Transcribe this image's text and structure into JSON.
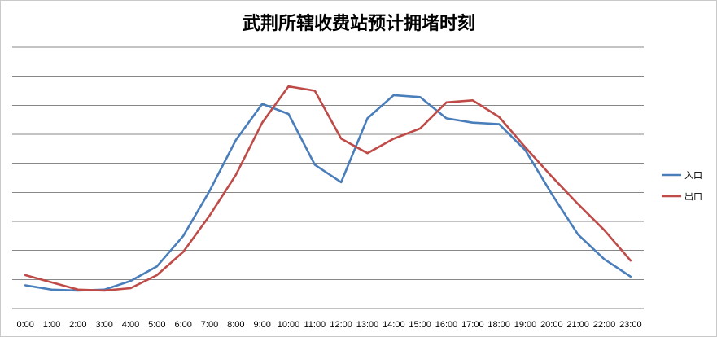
{
  "chart_data": {
    "type": "line",
    "title": "武荆所辖收费站预计拥堵时刻",
    "xlabel": "",
    "ylabel": "",
    "categories": [
      "0:00",
      "1:00",
      "2:00",
      "3:00",
      "4:00",
      "5:00",
      "6:00",
      "7:00",
      "8:00",
      "9:00",
      "10:00",
      "11:00",
      "12:00",
      "13:00",
      "14:00",
      "15:00",
      "16:00",
      "17:00",
      "18:00",
      "19:00",
      "20:00",
      "21:00",
      "22:00",
      "23:00"
    ],
    "ylim": [
      0,
      9
    ],
    "grid": true,
    "y_tick_labels_visible": false,
    "legend_position": "right",
    "series": [
      {
        "name": "入口",
        "color": "#4a7ebb",
        "values": [
          0.8,
          0.65,
          0.62,
          0.65,
          0.95,
          1.45,
          2.5,
          4.05,
          5.8,
          7.05,
          6.7,
          4.95,
          4.35,
          6.55,
          7.35,
          7.28,
          6.55,
          6.4,
          6.35,
          5.45,
          3.95,
          2.55,
          1.7,
          1.1
        ]
      },
      {
        "name": "出口",
        "color": "#be4b48",
        "values": [
          1.15,
          0.9,
          0.65,
          0.62,
          0.7,
          1.15,
          1.95,
          3.2,
          4.6,
          6.4,
          7.65,
          7.5,
          5.85,
          5.35,
          5.85,
          6.2,
          7.1,
          7.17,
          6.6,
          5.55,
          4.55,
          3.6,
          2.7,
          1.65
        ]
      }
    ]
  }
}
